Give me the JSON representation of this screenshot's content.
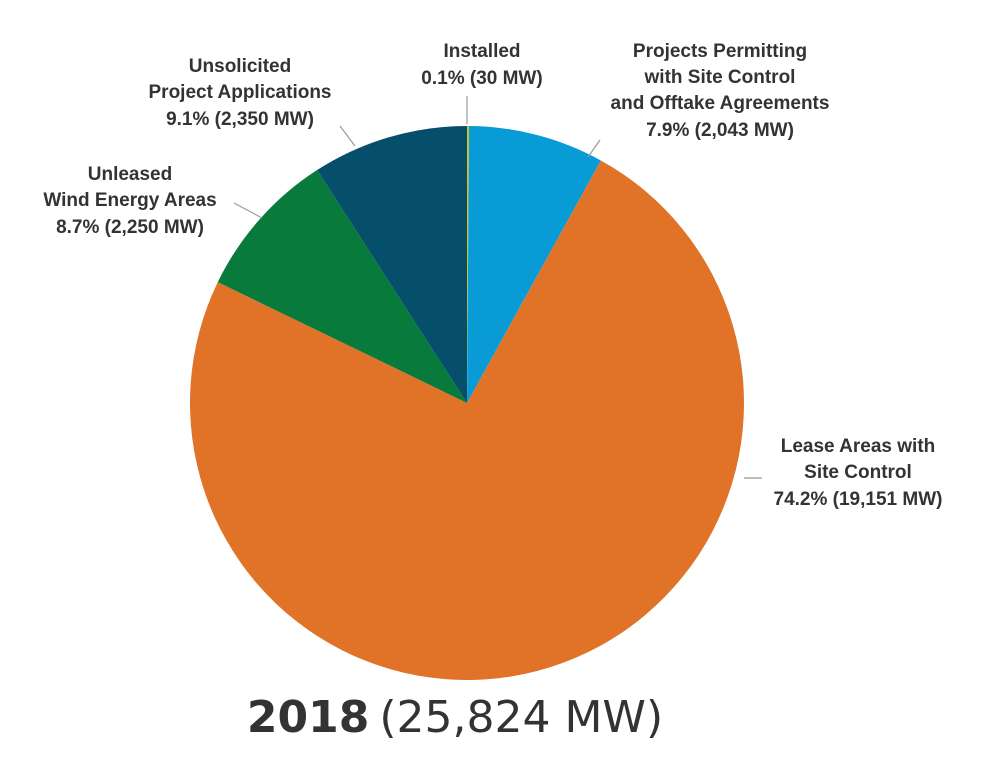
{
  "chart_data": {
    "type": "pie",
    "title": "2018",
    "subtitle": "(25,824 MW)",
    "categories": [
      [
        "Installed"
      ],
      [
        "Projects Permitting",
        "with Site Control",
        "and Offtake Agreements"
      ],
      [
        "Lease Areas with",
        "Site Control"
      ],
      [
        "Unleased",
        "Wind Energy Areas"
      ],
      [
        "Unsolicited",
        "Project Applications"
      ]
    ],
    "values": [
      30,
      2043,
      19151,
      2250,
      2350
    ],
    "value_labels": [
      "0.1% (30 MW)",
      "7.9% (2,043 MW)",
      "74.2% (19,151 MW)",
      "8.7% (2,250 MW)",
      "9.1% (2,350 MW)"
    ],
    "colors": [
      "#d4c22c",
      "#099bd6",
      "#e07328",
      "#087b3c",
      "#054f6b"
    ]
  }
}
